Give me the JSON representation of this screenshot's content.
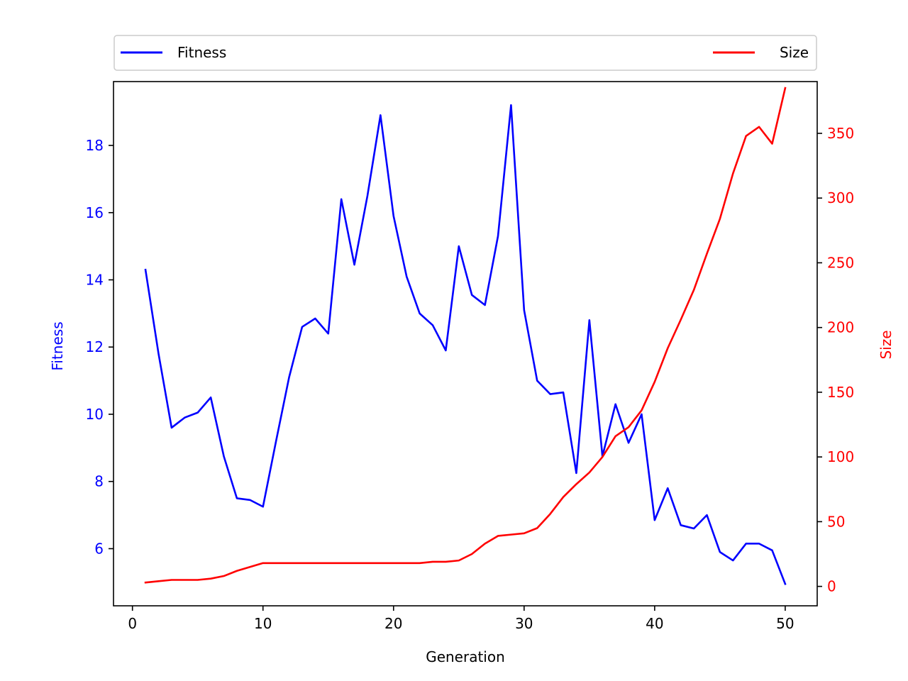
{
  "chart_data": {
    "type": "line",
    "xlabel": "Generation",
    "y_left_label": "Fitness",
    "y_right_label": "Size",
    "xlim": [
      -1.45,
      52.45
    ],
    "ylim_left": [
      4.3,
      19.9
    ],
    "ylim_right": [
      -15,
      390
    ],
    "x_ticks": [
      0,
      10,
      20,
      30,
      40,
      50
    ],
    "y_left_ticks": [
      6,
      8,
      10,
      12,
      14,
      16,
      18
    ],
    "y_right_ticks": [
      0,
      50,
      100,
      150,
      200,
      250,
      300,
      350
    ],
    "legend_placement": "top, above plot",
    "grid": false,
    "colors": {
      "left": "#0000ff",
      "right": "#ff0000",
      "axis": "#000000"
    },
    "x": [
      1,
      2,
      3,
      4,
      5,
      6,
      7,
      8,
      9,
      10,
      11,
      12,
      13,
      14,
      15,
      16,
      17,
      18,
      19,
      20,
      21,
      22,
      23,
      24,
      25,
      26,
      27,
      28,
      29,
      30,
      31,
      32,
      33,
      34,
      35,
      36,
      37,
      38,
      39,
      40,
      41,
      42,
      43,
      44,
      45,
      46,
      47,
      48,
      49,
      50
    ],
    "series": [
      {
        "name": "Fitness",
        "axis": "left",
        "color": "#0000ff",
        "values": [
          14.3,
          11.8,
          9.6,
          9.9,
          10.05,
          10.5,
          8.75,
          7.5,
          7.45,
          7.25,
          9.2,
          11.1,
          12.6,
          12.85,
          12.4,
          16.4,
          14.45,
          16.5,
          18.9,
          15.9,
          14.1,
          13.0,
          12.65,
          11.9,
          15.0,
          13.55,
          13.25,
          15.3,
          19.2,
          13.1,
          11.0,
          10.6,
          10.65,
          8.25,
          12.8,
          8.75,
          10.3,
          9.15,
          10.0,
          6.85,
          7.8,
          6.7,
          6.6,
          7.0,
          5.9,
          5.65,
          6.15,
          6.15,
          5.95,
          4.95
        ]
      },
      {
        "name": "Size",
        "axis": "right",
        "color": "#ff0000",
        "values": [
          3,
          4,
          5,
          5,
          5,
          6,
          8,
          12,
          15,
          18,
          18,
          18,
          18,
          18,
          18,
          18,
          18,
          18,
          18,
          18,
          18,
          18,
          19,
          19,
          20,
          25,
          33,
          39,
          40,
          41,
          45,
          56,
          69,
          79,
          88,
          100,
          116,
          123,
          136,
          158,
          184,
          206,
          229,
          257,
          284,
          319,
          348,
          355,
          342,
          385
        ]
      }
    ]
  }
}
